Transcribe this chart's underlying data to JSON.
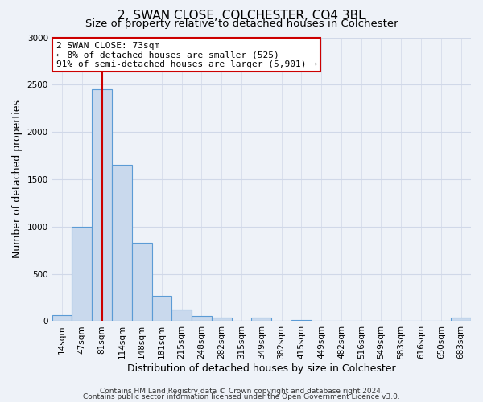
{
  "title": "2, SWAN CLOSE, COLCHESTER, CO4 3BL",
  "subtitle": "Size of property relative to detached houses in Colchester",
  "xlabel": "Distribution of detached houses by size in Colchester",
  "ylabel": "Number of detached properties",
  "bin_labels": [
    "14sqm",
    "47sqm",
    "81sqm",
    "114sqm",
    "148sqm",
    "181sqm",
    "215sqm",
    "248sqm",
    "282sqm",
    "315sqm",
    "349sqm",
    "382sqm",
    "415sqm",
    "449sqm",
    "482sqm",
    "516sqm",
    "549sqm",
    "583sqm",
    "616sqm",
    "650sqm",
    "683sqm"
  ],
  "bar_values": [
    60,
    1000,
    2450,
    1650,
    830,
    270,
    125,
    55,
    40,
    0,
    35,
    0,
    15,
    0,
    0,
    0,
    0,
    0,
    0,
    0,
    40
  ],
  "bar_color": "#c9d9ed",
  "bar_edge_color": "#5b9bd5",
  "vline_index": 2,
  "property_line_label": "2 SWAN CLOSE: 73sqm",
  "annotation_line1": "← 8% of detached houses are smaller (525)",
  "annotation_line2": "91% of semi-detached houses are larger (5,901) →",
  "vline_color": "#cc0000",
  "ylim": [
    0,
    3000
  ],
  "yticks": [
    0,
    500,
    1000,
    1500,
    2000,
    2500,
    3000
  ],
  "footnote1": "Contains HM Land Registry data © Crown copyright and database right 2024.",
  "footnote2": "Contains public sector information licensed under the Open Government Licence v3.0.",
  "background_color": "#eef2f8",
  "grid_color": "#d0d8e8",
  "annotation_box_color": "#ffffff",
  "annotation_box_edge": "#cc0000",
  "title_fontsize": 11,
  "subtitle_fontsize": 9.5,
  "axis_label_fontsize": 9,
  "tick_fontsize": 7.5,
  "annotation_fontsize": 8,
  "footnote_fontsize": 6.5
}
